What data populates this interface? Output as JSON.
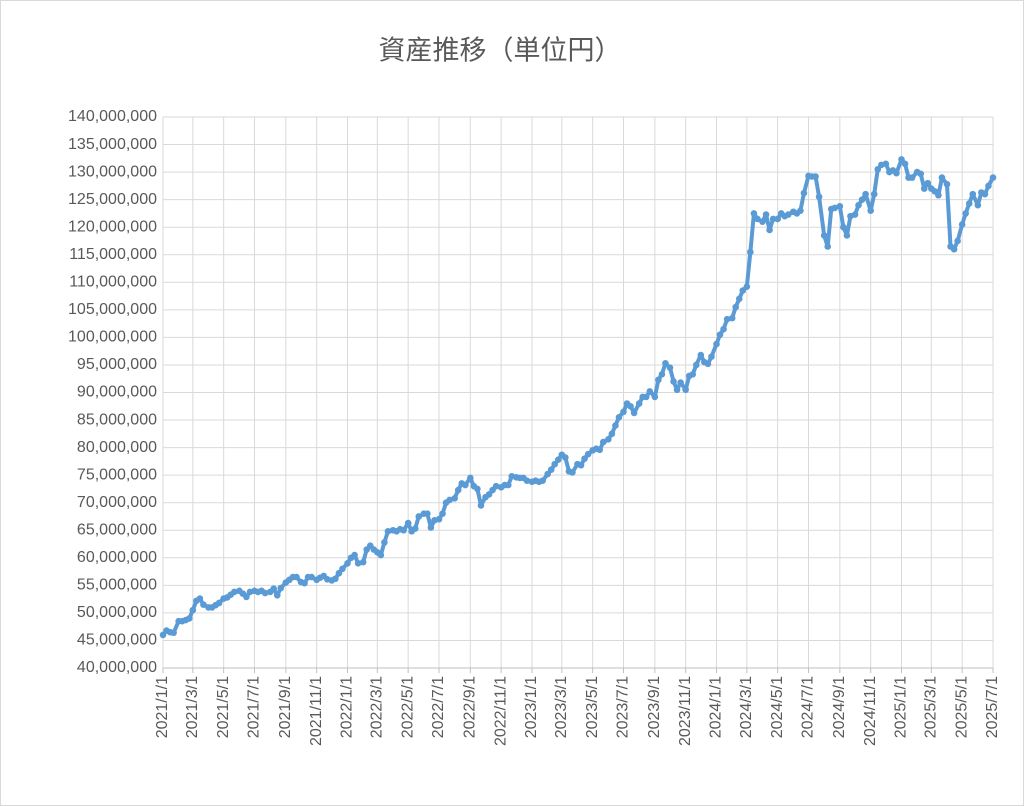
{
  "chart_data": {
    "type": "line",
    "title": "資産推移（単位円）",
    "series": [
      {
        "name": "資産",
        "color": "#5b9bd5",
        "values": [
          46000000,
          46800000,
          46500000,
          46400000,
          48500000,
          48500000,
          48700000,
          49000000,
          50500000,
          52200000,
          52600000,
          51500000,
          51000000,
          51000000,
          51400000,
          51800000,
          52600000,
          52800000,
          53300000,
          53800000,
          54000000,
          53500000,
          52900000,
          53800000,
          54000000,
          53800000,
          54000000,
          53600000,
          53800000,
          54400000,
          53200000,
          54500000,
          55500000,
          56000000,
          56500000,
          56500000,
          55600000,
          55400000,
          56500000,
          56500000,
          56000000,
          56400000,
          56700000,
          56100000,
          55900000,
          56200000,
          57200000,
          58000000,
          59000000,
          60000000,
          60500000,
          59000000,
          59200000,
          61500000,
          62200000,
          61500000,
          61000000,
          60500000,
          62800000,
          64800000,
          65000000,
          64800000,
          65200000,
          65000000,
          66300000,
          64800000,
          65300000,
          67500000,
          68000000,
          68000000,
          65500000,
          66800000,
          67000000,
          68000000,
          70000000,
          70500000,
          70800000,
          72300000,
          73500000,
          73200000,
          74500000,
          73000000,
          72500000,
          69500000,
          71000000,
          71500000,
          72300000,
          73000000,
          72800000,
          73200000,
          73200000,
          74800000,
          74600000,
          74500000,
          74500000,
          74000000,
          73800000,
          74000000,
          73800000,
          74000000,
          75200000,
          76000000,
          77000000,
          77800000,
          78700000,
          78200000,
          75700000,
          75500000,
          77000000,
          76800000,
          78000000,
          78800000,
          79500000,
          79800000,
          79600000,
          81000000,
          81500000,
          82500000,
          84000000,
          85500000,
          86500000,
          88000000,
          87500000,
          86300000,
          88000000,
          89200000,
          89200000,
          90200000,
          89200000,
          92300000,
          93300000,
          95300000,
          94500000,
          92000000,
          90500000,
          91800000,
          90500000,
          93000000,
          93300000,
          95000000,
          96800000,
          95500000,
          95200000,
          96500000,
          98800000,
          100500000,
          101500000,
          103300000,
          103500000,
          105500000,
          107000000,
          108500000,
          109200000,
          115500000,
          122500000,
          121500000,
          121000000,
          122300000,
          119500000,
          121500000,
          121500000,
          122500000,
          122000000,
          122300000,
          122800000,
          122500000,
          123000000,
          126200000,
          129300000,
          129200000,
          129200000,
          125500000,
          118500000,
          116500000,
          123300000,
          123500000,
          123800000,
          120000000,
          118500000,
          122000000,
          122300000,
          124000000,
          125000000,
          126000000,
          123000000,
          126000000,
          130500000,
          131300000,
          131500000,
          130000000,
          130300000,
          129800000,
          132300000,
          131500000,
          129000000,
          129000000,
          130000000,
          129700000,
          127000000,
          128000000,
          127000000,
          126500000,
          125800000,
          129000000,
          127800000,
          116500000,
          116000000,
          117500000,
          120500000,
          122500000,
          124300000,
          126000000,
          124000000,
          126300000,
          126000000,
          127500000,
          129000000
        ]
      }
    ],
    "x": [
      "2021/1/1",
      "2021/1/8",
      "2021/1/15",
      "2021/1/22",
      "2021/2/1",
      "2021/2/8",
      "2021/2/15",
      "2021/2/22",
      "2021/3/1",
      "2021/3/8",
      "2021/3/15",
      "2021/3/22",
      "2021/4/1",
      "2021/4/8",
      "2021/4/15",
      "2021/4/22",
      "2021/5/1",
      "2021/5/8",
      "2021/5/15",
      "2021/5/22",
      "2021/6/1",
      "2021/6/8",
      "2021/6/15",
      "2021/6/22",
      "2021/7/1",
      "2021/7/8",
      "2021/7/15",
      "2021/7/22",
      "2021/8/1",
      "2021/8/8",
      "2021/8/15",
      "2021/8/22",
      "2021/9/1",
      "2021/9/8",
      "2021/9/15",
      "2021/9/22",
      "2021/10/1",
      "2021/10/8",
      "2021/10/15",
      "2021/10/22",
      "2021/11/1",
      "2021/11/8",
      "2021/11/15",
      "2021/11/22",
      "2021/12/1",
      "2021/12/8",
      "2021/12/15",
      "2021/12/22",
      "2022/1/1",
      "2022/1/8",
      "2022/1/15",
      "2022/1/22",
      "2022/2/1",
      "2022/2/8",
      "2022/2/15",
      "2022/2/22",
      "2022/3/1",
      "2022/3/8",
      "2022/3/15",
      "2022/3/22",
      "2022/4/1",
      "2022/4/8",
      "2022/4/15",
      "2022/4/22",
      "2022/5/1",
      "2022/5/8",
      "2022/5/15",
      "2022/5/22",
      "2022/6/1",
      "2022/6/8",
      "2022/6/15",
      "2022/6/22",
      "2022/7/1",
      "2022/7/8",
      "2022/7/15",
      "2022/7/22",
      "2022/8/1",
      "2022/8/8",
      "2022/8/15",
      "2022/8/22",
      "2022/9/1",
      "2022/9/8",
      "2022/9/15",
      "2022/9/22",
      "2022/10/1",
      "2022/10/8",
      "2022/10/15",
      "2022/10/22",
      "2022/11/1",
      "2022/11/8",
      "2022/11/15",
      "2022/11/22",
      "2022/12/1",
      "2022/12/8",
      "2022/12/15",
      "2022/12/22",
      "2023/1/1",
      "2023/1/8",
      "2023/1/15",
      "2023/1/22",
      "2023/2/1",
      "2023/2/8",
      "2023/2/15",
      "2023/2/22",
      "2023/3/1",
      "2023/3/8",
      "2023/3/15",
      "2023/3/22",
      "2023/4/1",
      "2023/4/8",
      "2023/4/15",
      "2023/4/22",
      "2023/5/1",
      "2023/5/8",
      "2023/5/15",
      "2023/5/22",
      "2023/6/1",
      "2023/6/8",
      "2023/6/15",
      "2023/6/22",
      "2023/7/1",
      "2023/7/8",
      "2023/7/15",
      "2023/7/22",
      "2023/8/1",
      "2023/8/8",
      "2023/8/15",
      "2023/8/22",
      "2023/9/1",
      "2023/9/8",
      "2023/9/15",
      "2023/9/22",
      "2023/10/1",
      "2023/10/8",
      "2023/10/15",
      "2023/10/22",
      "2023/11/1",
      "2023/11/8",
      "2023/11/15",
      "2023/11/22",
      "2023/12/1",
      "2023/12/8",
      "2023/12/15",
      "2023/12/22",
      "2024/1/1",
      "2024/1/8",
      "2024/1/15",
      "2024/1/22",
      "2024/2/1",
      "2024/2/8",
      "2024/2/15",
      "2024/2/22",
      "2024/3/1",
      "2024/3/8",
      "2024/3/15",
      "2024/3/22",
      "2024/4/1",
      "2024/4/8",
      "2024/4/15",
      "2024/4/22",
      "2024/5/1",
      "2024/5/8",
      "2024/5/15",
      "2024/5/22",
      "2024/6/1",
      "2024/6/8",
      "2024/6/15",
      "2024/6/22",
      "2024/7/1",
      "2024/7/8",
      "2024/7/15",
      "2024/7/22",
      "2024/8/1",
      "2024/8/8",
      "2024/8/15",
      "2024/8/22",
      "2024/9/1",
      "2024/9/8",
      "2024/9/15",
      "2024/9/22",
      "2024/10/1",
      "2024/10/8",
      "2024/10/15",
      "2024/10/22",
      "2024/11/1",
      "2024/11/8",
      "2024/11/15",
      "2024/11/22",
      "2024/12/1",
      "2024/12/8",
      "2024/12/15",
      "2024/12/22",
      "2025/1/1",
      "2025/1/8",
      "2025/1/15",
      "2025/1/22",
      "2025/2/1",
      "2025/2/8",
      "2025/2/15",
      "2025/2/22",
      "2025/3/1",
      "2025/3/8",
      "2025/3/15",
      "2025/3/22",
      "2025/4/1",
      "2025/4/8",
      "2025/4/15",
      "2025/4/22",
      "2025/5/1",
      "2025/5/8",
      "2025/5/15",
      "2025/5/22",
      "2025/6/1",
      "2025/6/8",
      "2025/6/15",
      "2025/6/22",
      "2025/7/1"
    ],
    "xlim": [
      "2021/1/1",
      "2025/7/1"
    ],
    "xticks": [
      "2021/1/1",
      "2021/3/1",
      "2021/5/1",
      "2021/7/1",
      "2021/9/1",
      "2021/11/1",
      "2022/1/1",
      "2022/3/1",
      "2022/5/1",
      "2022/7/1",
      "2022/9/1",
      "2022/11/1",
      "2023/1/1",
      "2023/3/1",
      "2023/5/1",
      "2023/7/1",
      "2023/9/1",
      "2023/11/1",
      "2024/1/1",
      "2024/3/1",
      "2024/5/1",
      "2024/7/1",
      "2024/9/1",
      "2024/11/1",
      "2025/1/1",
      "2025/3/1",
      "2025/5/1",
      "2025/7/1"
    ],
    "ylim": [
      40000000,
      140000000
    ],
    "yticks": [
      {
        "value": 40000000,
        "label": "40,000,000"
      },
      {
        "value": 45000000,
        "label": "45,000,000"
      },
      {
        "value": 50000000,
        "label": "50,000,000"
      },
      {
        "value": 55000000,
        "label": "55,000,000"
      },
      {
        "value": 60000000,
        "label": "60,000,000"
      },
      {
        "value": 65000000,
        "label": "65,000,000"
      },
      {
        "value": 70000000,
        "label": "70,000,000"
      },
      {
        "value": 75000000,
        "label": "75,000,000"
      },
      {
        "value": 80000000,
        "label": "80,000,000"
      },
      {
        "value": 85000000,
        "label": "85,000,000"
      },
      {
        "value": 90000000,
        "label": "90,000,000"
      },
      {
        "value": 95000000,
        "label": "95,000,000"
      },
      {
        "value": 100000000,
        "label": "100,000,000"
      },
      {
        "value": 105000000,
        "label": "105,000,000"
      },
      {
        "value": 110000000,
        "label": "110,000,000"
      },
      {
        "value": 115000000,
        "label": "115,000,000"
      },
      {
        "value": 120000000,
        "label": "120,000,000"
      },
      {
        "value": 125000000,
        "label": "125,000,000"
      },
      {
        "value": 130000000,
        "label": "130,000,000"
      },
      {
        "value": 135000000,
        "label": "135,000,000"
      },
      {
        "value": 140000000,
        "label": "140,000,000"
      }
    ],
    "grid": true
  }
}
